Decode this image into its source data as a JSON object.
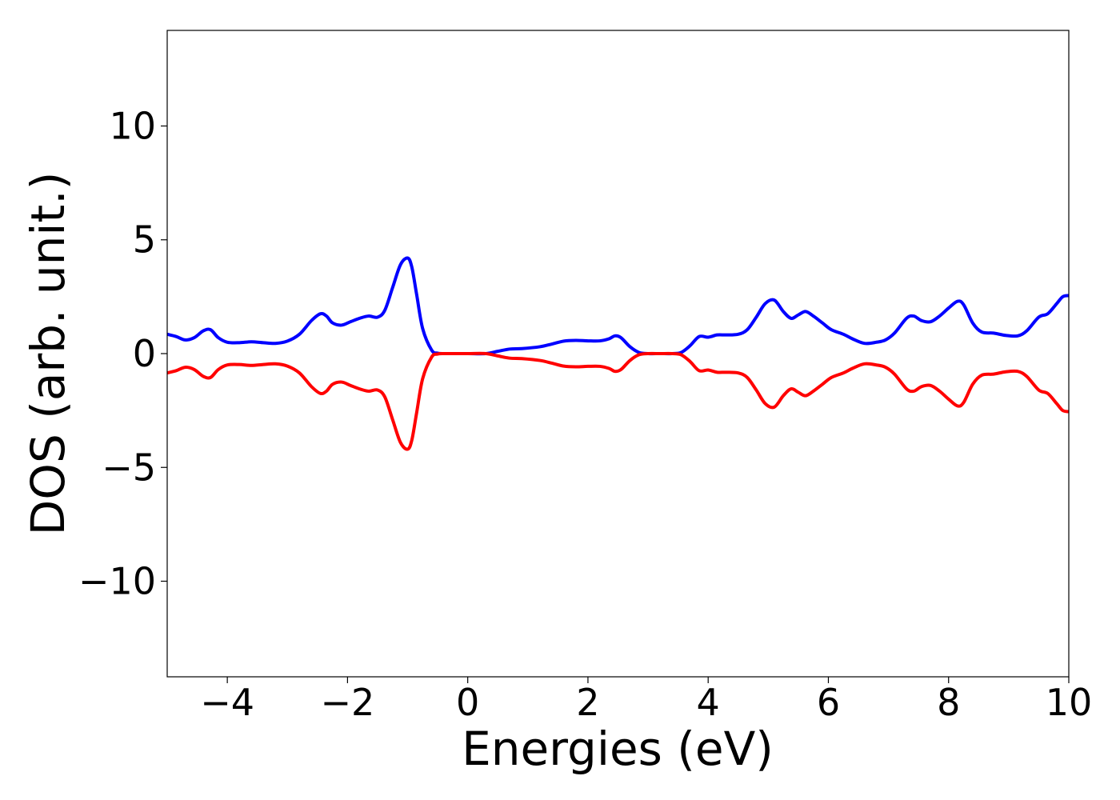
{
  "chart_data": {
    "type": "line",
    "title": "",
    "xlabel": "Energies (eV)",
    "ylabel": "DOS (arb. unit.)",
    "xlim": [
      -5,
      10
    ],
    "ylim": [
      -14.2,
      14.2
    ],
    "xticks": [
      -4,
      -2,
      0,
      2,
      4,
      6,
      8,
      10
    ],
    "xtick_labels": [
      "−4",
      "−2",
      "0",
      "2",
      "4",
      "6",
      "8",
      "10"
    ],
    "yticks": [
      -10,
      -5,
      0,
      5,
      10
    ],
    "ytick_labels": [
      "−10",
      "−5",
      "0",
      "5",
      "10"
    ],
    "grid": false,
    "legend": "none",
    "series": [
      {
        "color": "#0000ff",
        "x": [
          -5.0,
          -4.85,
          -4.7,
          -4.55,
          -4.4,
          -4.28,
          -4.15,
          -4.0,
          -3.8,
          -3.6,
          -3.4,
          -3.2,
          -3.0,
          -2.8,
          -2.6,
          -2.45,
          -2.35,
          -2.25,
          -2.1,
          -1.95,
          -1.8,
          -1.65,
          -1.5,
          -1.38,
          -1.25,
          -1.12,
          -1.0,
          -0.93,
          -0.85,
          -0.75,
          -0.6,
          -0.5,
          -0.4,
          -0.3,
          0.0,
          0.3,
          0.5,
          0.7,
          0.9,
          1.2,
          1.4,
          1.6,
          1.8,
          2.0,
          2.2,
          2.35,
          2.45,
          2.55,
          2.7,
          2.85,
          3.0,
          3.2,
          3.4,
          3.55,
          3.7,
          3.85,
          4.0,
          4.15,
          4.3,
          4.5,
          4.65,
          4.8,
          4.95,
          5.1,
          5.25,
          5.38,
          5.5,
          5.62,
          5.75,
          5.9,
          6.05,
          6.25,
          6.4,
          6.6,
          6.8,
          6.95,
          7.1,
          7.3,
          7.42,
          7.55,
          7.7,
          7.85,
          8.0,
          8.15,
          8.25,
          8.4,
          8.55,
          8.75,
          8.95,
          9.15,
          9.3,
          9.5,
          9.65,
          9.8,
          9.9,
          10.0
        ],
        "y": [
          0.85,
          0.75,
          0.6,
          0.7,
          1.0,
          1.05,
          0.7,
          0.5,
          0.48,
          0.52,
          0.48,
          0.45,
          0.55,
          0.85,
          1.45,
          1.75,
          1.65,
          1.35,
          1.25,
          1.4,
          1.55,
          1.65,
          1.6,
          1.9,
          2.9,
          3.9,
          4.2,
          3.8,
          2.6,
          1.1,
          0.15,
          0.02,
          0.0,
          0.0,
          0.0,
          0.0,
          0.1,
          0.2,
          0.22,
          0.3,
          0.42,
          0.55,
          0.58,
          0.56,
          0.56,
          0.65,
          0.78,
          0.7,
          0.3,
          0.05,
          0.0,
          0.0,
          0.0,
          0.05,
          0.35,
          0.75,
          0.72,
          0.82,
          0.82,
          0.85,
          1.05,
          1.6,
          2.2,
          2.35,
          1.85,
          1.55,
          1.7,
          1.85,
          1.65,
          1.35,
          1.05,
          0.85,
          0.65,
          0.45,
          0.5,
          0.6,
          0.9,
          1.55,
          1.65,
          1.45,
          1.4,
          1.65,
          2.0,
          2.3,
          2.15,
          1.35,
          0.95,
          0.9,
          0.8,
          0.78,
          1.0,
          1.6,
          1.75,
          2.2,
          2.5,
          2.55
        ]
      },
      {
        "color": "#ff0000",
        "x": [
          -5.0,
          -4.85,
          -4.7,
          -4.55,
          -4.4,
          -4.28,
          -4.15,
          -4.0,
          -3.8,
          -3.6,
          -3.4,
          -3.2,
          -3.0,
          -2.8,
          -2.6,
          -2.45,
          -2.35,
          -2.25,
          -2.1,
          -1.95,
          -1.8,
          -1.65,
          -1.5,
          -1.38,
          -1.25,
          -1.12,
          -1.0,
          -0.93,
          -0.85,
          -0.75,
          -0.6,
          -0.5,
          -0.4,
          -0.3,
          0.0,
          0.3,
          0.5,
          0.7,
          0.9,
          1.2,
          1.4,
          1.6,
          1.8,
          2.0,
          2.2,
          2.35,
          2.45,
          2.55,
          2.7,
          2.85,
          3.0,
          3.2,
          3.4,
          3.55,
          3.7,
          3.85,
          4.0,
          4.15,
          4.3,
          4.5,
          4.65,
          4.8,
          4.95,
          5.1,
          5.25,
          5.38,
          5.5,
          5.62,
          5.75,
          5.9,
          6.05,
          6.25,
          6.4,
          6.6,
          6.8,
          6.95,
          7.1,
          7.3,
          7.42,
          7.55,
          7.7,
          7.85,
          8.0,
          8.15,
          8.25,
          8.4,
          8.55,
          8.75,
          8.95,
          9.15,
          9.3,
          9.5,
          9.65,
          9.8,
          9.9,
          10.0
        ],
        "y": [
          -0.85,
          -0.75,
          -0.6,
          -0.7,
          -1.0,
          -1.05,
          -0.7,
          -0.5,
          -0.48,
          -0.52,
          -0.48,
          -0.45,
          -0.55,
          -0.85,
          -1.45,
          -1.75,
          -1.65,
          -1.35,
          -1.25,
          -1.4,
          -1.55,
          -1.65,
          -1.6,
          -1.9,
          -2.9,
          -3.9,
          -4.2,
          -3.8,
          -2.6,
          -1.1,
          -0.15,
          -0.02,
          0.0,
          0.0,
          0.0,
          0.0,
          -0.1,
          -0.2,
          -0.22,
          -0.3,
          -0.42,
          -0.55,
          -0.58,
          -0.56,
          -0.56,
          -0.65,
          -0.78,
          -0.7,
          -0.3,
          -0.05,
          0.0,
          0.0,
          0.0,
          -0.05,
          -0.35,
          -0.75,
          -0.72,
          -0.82,
          -0.82,
          -0.85,
          -1.05,
          -1.6,
          -2.2,
          -2.35,
          -1.85,
          -1.55,
          -1.7,
          -1.85,
          -1.65,
          -1.35,
          -1.05,
          -0.85,
          -0.65,
          -0.45,
          -0.5,
          -0.6,
          -0.9,
          -1.55,
          -1.65,
          -1.45,
          -1.4,
          -1.65,
          -2.0,
          -2.3,
          -2.15,
          -1.35,
          -0.95,
          -0.9,
          -0.8,
          -0.78,
          -1.0,
          -1.6,
          -1.75,
          -2.2,
          -2.5,
          -2.55
        ]
      }
    ]
  }
}
